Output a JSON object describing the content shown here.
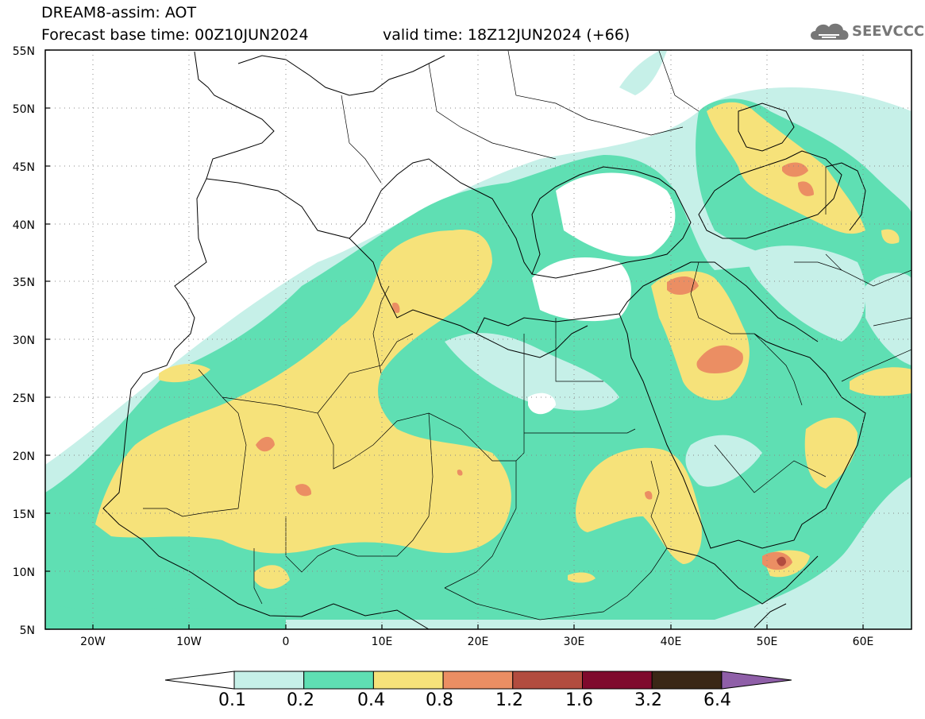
{
  "title": {
    "line1": "DREAM8-assim: AOT",
    "base": "Forecast base time: 00Z10JUN2024",
    "valid": "valid time: 18Z12JUN2024 (+66)"
  },
  "logo": {
    "text": "SEEVCCC",
    "icon": "cloud-logo-icon"
  },
  "map": {
    "lat_labels": [
      "55N",
      "50N",
      "45N",
      "40N",
      "35N",
      "30N",
      "25N",
      "20N",
      "15N",
      "10N",
      "5N"
    ],
    "lon_labels": [
      "20W",
      "10W",
      "0",
      "10E",
      "20E",
      "30E",
      "40E",
      "50E",
      "60E"
    ],
    "extent": {
      "lon": [
        -25,
        65
      ],
      "lat": [
        5,
        55
      ]
    },
    "grid": "dotted"
  },
  "colorbar": {
    "labels": [
      "0.1",
      "0.2",
      "0.4",
      "0.8",
      "1.2",
      "1.6",
      "3.2",
      "6.4"
    ],
    "colors": [
      "#c6f0e8",
      "#5fdfb3",
      "#f6e27a",
      "#eb8e63",
      "#b24c3f",
      "#7f0a2d",
      "#3a2716",
      "#8f5fa8"
    ],
    "under_color": "#ffffff"
  },
  "colors": {
    "c1": "#c6f0e8",
    "c2": "#5fdfb3",
    "c3": "#f6e27a",
    "c4": "#eb8e63",
    "c5": "#b24c3f",
    "c6": "#7f0a2d"
  }
}
